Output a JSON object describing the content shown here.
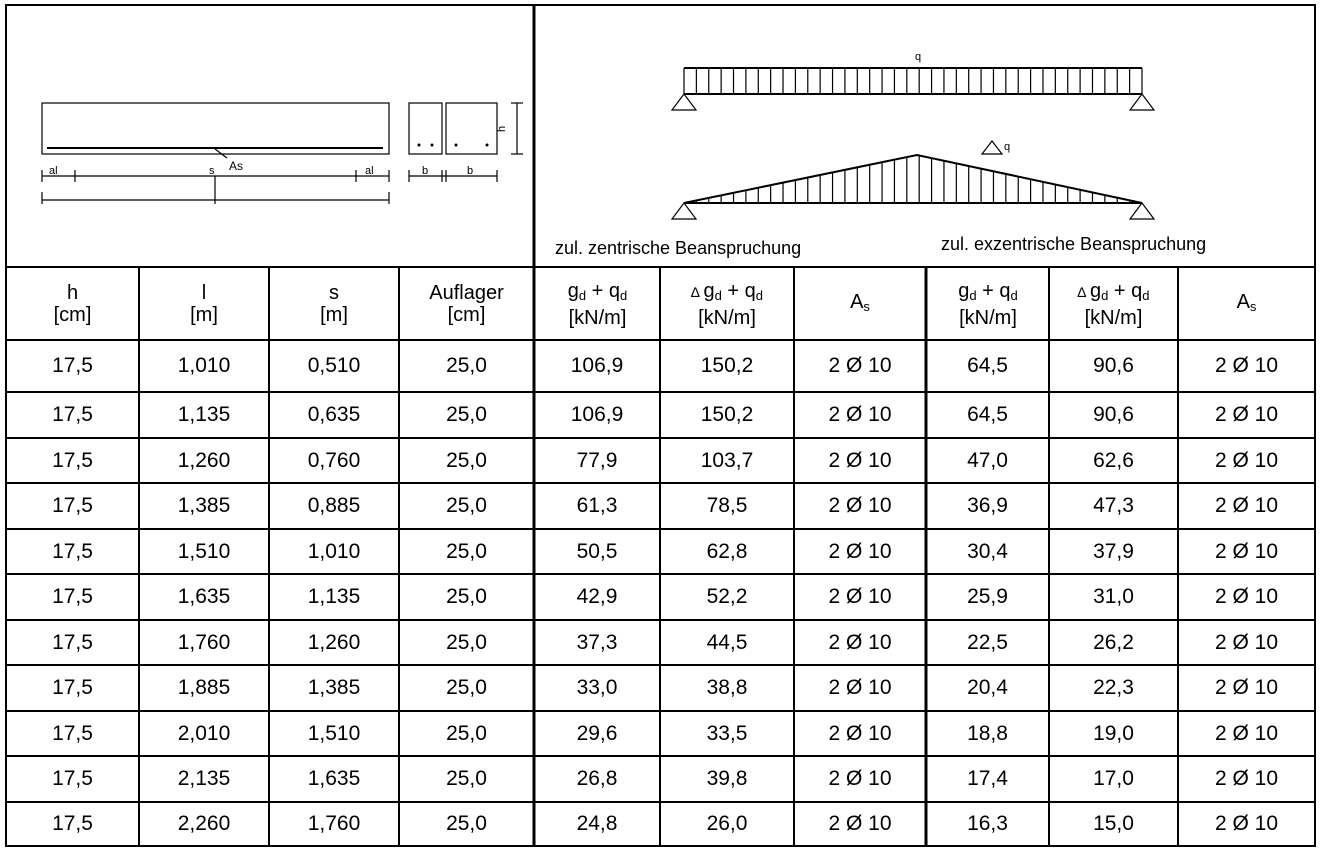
{
  "diagram": {
    "as_label": "As",
    "s_label": "s",
    "al_label": "al",
    "b_label": "b",
    "h_label": "h",
    "q_label": "q",
    "dq_label": "q"
  },
  "captions": {
    "centric": "zul. zentrische Beanspruchung",
    "eccentric": "zul. exzentrische Beanspruchung"
  },
  "headers": {
    "h": {
      "name": "h",
      "unit": "[cm]"
    },
    "l": {
      "name": "l",
      "unit": "[m]"
    },
    "s": {
      "name": "s",
      "unit": "[m]"
    },
    "auflager": {
      "name": "Auflager",
      "unit": "[cm]"
    },
    "gq_centric": {
      "g": "g",
      "g_sub": "d",
      "plus": " + ",
      "q": "q",
      "q_sub": "d",
      "unit": "[kN/m]"
    },
    "dgq_centric": {
      "delta": "∆ ",
      "g": "g",
      "g_sub": "d",
      "plus": " + ",
      "q": "q",
      "q_sub": "d",
      "unit": "[kN/m]"
    },
    "as_centric": {
      "a": "A",
      "a_sub": "s"
    },
    "gq_eccentric": {
      "g": "g",
      "g_sub": "d",
      "plus": " + ",
      "q": "q",
      "q_sub": "d",
      "unit": "[kN/m]"
    },
    "dgq_eccentric": {
      "delta": "∆ ",
      "g": "g",
      "g_sub": "d",
      "plus": " + ",
      "q": "q",
      "q_sub": "d",
      "unit": "[kN/m]"
    },
    "as_eccentric": {
      "a": "A",
      "a_sub": "s"
    }
  },
  "rows": [
    [
      "17,5",
      "1,010",
      "0,510",
      "25,0",
      "106,9",
      "150,2",
      "2 Ø 10",
      "64,5",
      "90,6",
      "2 Ø 10"
    ],
    [
      "17,5",
      "1,135",
      "0,635",
      "25,0",
      "106,9",
      "150,2",
      "2 Ø 10",
      "64,5",
      "90,6",
      "2 Ø 10"
    ],
    [
      "17,5",
      "1,260",
      "0,760",
      "25,0",
      "77,9",
      "103,7",
      "2 Ø 10",
      "47,0",
      "62,6",
      "2 Ø 10"
    ],
    [
      "17,5",
      "1,385",
      "0,885",
      "25,0",
      "61,3",
      "78,5",
      "2 Ø 10",
      "36,9",
      "47,3",
      "2 Ø 10"
    ],
    [
      "17,5",
      "1,510",
      "1,010",
      "25,0",
      "50,5",
      "62,8",
      "2 Ø 10",
      "30,4",
      "37,9",
      "2 Ø 10"
    ],
    [
      "17,5",
      "1,635",
      "1,135",
      "25,0",
      "42,9",
      "52,2",
      "2 Ø 10",
      "25,9",
      "31,0",
      "2 Ø 10"
    ],
    [
      "17,5",
      "1,760",
      "1,260",
      "25,0",
      "37,3",
      "44,5",
      "2 Ø 10",
      "22,5",
      "26,2",
      "2 Ø 10"
    ],
    [
      "17,5",
      "1,885",
      "1,385",
      "25,0",
      "33,0",
      "38,8",
      "2 Ø 10",
      "20,4",
      "22,3",
      "2 Ø 10"
    ],
    [
      "17,5",
      "2,010",
      "1,510",
      "25,0",
      "29,6",
      "33,5",
      "2 Ø 10",
      "18,8",
      "19,0",
      "2 Ø 10"
    ],
    [
      "17,5",
      "2,135",
      "1,635",
      "25,0",
      "26,8",
      "39,8",
      "2 Ø 10",
      "17,4",
      "17,0",
      "2 Ø 10"
    ],
    [
      "17,5",
      "2,260",
      "1,760",
      "25,0",
      "24,8",
      "26,0",
      "2 Ø 10",
      "16,3",
      "15,0",
      "2 Ø 10"
    ]
  ]
}
